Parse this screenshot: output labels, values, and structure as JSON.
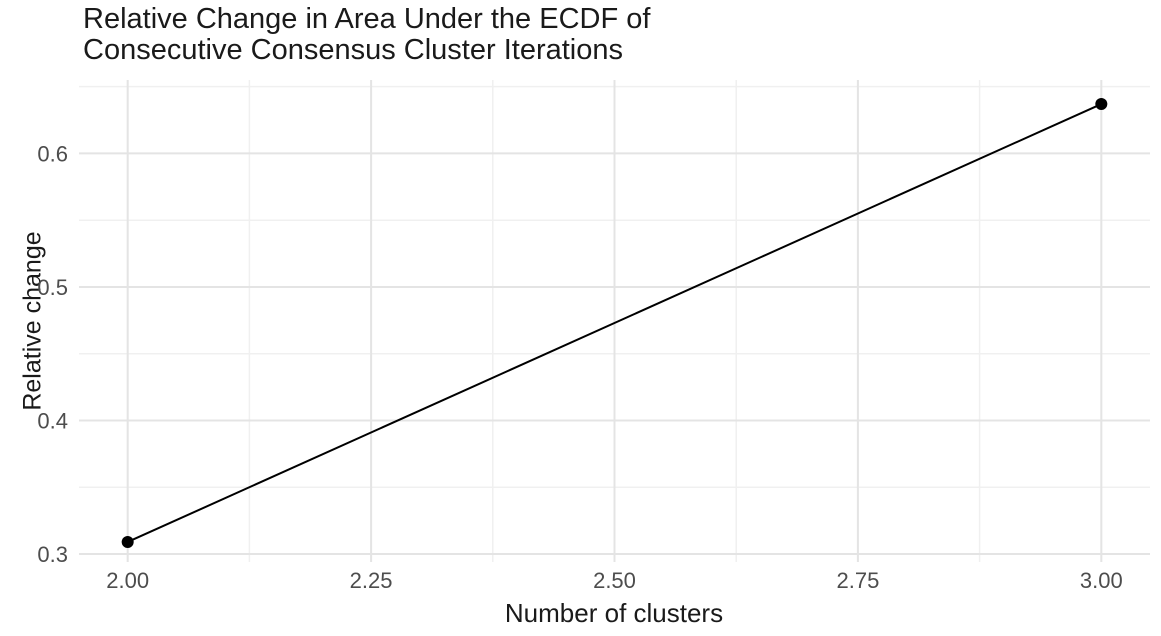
{
  "chart_data": {
    "type": "line",
    "title": "Relative Change in Area Under the ECDF of Consecutive Consensus Cluster Iterations",
    "xlabel": "Number of clusters",
    "ylabel": "Relative change",
    "x": [
      2.0,
      3.0
    ],
    "y": [
      0.309,
      0.637
    ],
    "series_color": "#000000",
    "line_width": 2,
    "point_radius": 6,
    "xlim": [
      1.95,
      3.05
    ],
    "ylim": [
      0.294,
      0.655
    ],
    "x_ticks": {
      "values": [
        2.0,
        2.25,
        2.5,
        2.75,
        3.0
      ],
      "labels": [
        "2.00",
        "2.25",
        "2.50",
        "2.75",
        "3.00"
      ]
    },
    "y_ticks": {
      "values": [
        0.3,
        0.4,
        0.5,
        0.6
      ],
      "labels": [
        "0.3",
        "0.4",
        "0.5",
        "0.6"
      ]
    },
    "x_minor": [
      2.125,
      2.375,
      2.625,
      2.875
    ],
    "y_minor": [
      0.35,
      0.45,
      0.55,
      0.65
    ],
    "grid": {
      "major_color": "#e4e4e4",
      "minor_color": "#f0f0f0",
      "grid_on": true
    },
    "legend": "none",
    "background": "#ffffff",
    "text_colors": {
      "title": "#1a1a1a",
      "axis_title": "#1a1a1a",
      "tick_label": "#4d4d4d"
    }
  }
}
